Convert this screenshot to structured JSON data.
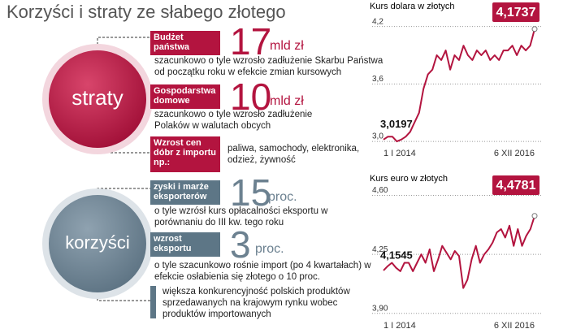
{
  "title": "Korzyści i straty ze słabego złotego",
  "straty": {
    "label": "straty",
    "items": [
      {
        "tag": "Budżet państwa",
        "number": 17,
        "unit": "mld zł",
        "text": "szacunkowo o tyle wzrosło zadłużenie Skarbu Państwa od początku roku w efekcie zmian kursowych"
      },
      {
        "tag": "Gospodarstwa domowe",
        "number": 10,
        "unit": "mld zł",
        "text": "szacunkowo o tyle wzrosło zadłużenie Polaków w walutach obcych"
      },
      {
        "tag": "Wzrost cen dóbr z importu np.:",
        "text": "paliwa, samochody, elektronika, odzież, żywność"
      }
    ]
  },
  "korzysci": {
    "label": "korzyści",
    "items": [
      {
        "tag": "zyski i marże eksporterów",
        "number": 15,
        "unit": "proc.",
        "text": "o tyle wzrósł kurs opłacalności eksportu w porównaniu do III kw. tego roku"
      },
      {
        "tag": "wzrost eksportu",
        "number": 3,
        "unit": "proc.",
        "text": "o tyle szacunkowo rośnie import (po 4 kwartałach) w efekcie osłabienia się złotego o 10 proc."
      },
      {
        "text": "większa konkurencyjność polskich produktów sprzedawanych na krajowym rynku wobec produktów importowanych"
      }
    ]
  },
  "chart_data": [
    {
      "type": "line",
      "title": "Kurs dolara w złotych",
      "color": "#b3143f",
      "grid": true,
      "ylim": [
        2.95,
        4.35
      ],
      "yticks": [
        {
          "value": 3.0,
          "label": "3,0"
        },
        {
          "value": 3.6,
          "label": "3,6"
        },
        {
          "value": 4.2,
          "label": "4,2"
        }
      ],
      "categories": [
        "1 I 2014",
        null,
        null,
        null,
        null,
        null,
        null,
        null,
        null,
        null,
        null,
        null,
        null,
        null,
        null,
        null,
        null,
        null,
        null,
        null,
        null,
        null,
        null,
        null,
        null,
        null,
        null,
        null,
        null,
        null,
        null,
        null,
        null,
        null,
        "6 XII 2016"
      ],
      "values": [
        3.0197,
        3.05,
        3.05,
        3.0,
        3.02,
        3.05,
        3.1,
        3.2,
        3.3,
        3.55,
        3.7,
        3.75,
        3.9,
        3.85,
        3.95,
        3.75,
        3.9,
        3.85,
        4.0,
        3.9,
        3.85,
        3.95,
        3.9,
        3.95,
        3.85,
        3.9,
        3.85,
        3.95,
        3.95,
        4.0,
        3.9,
        4.0,
        3.95,
        4.0,
        4.1737
      ],
      "value_labels": [
        "3,0197",
        null,
        null,
        null,
        null,
        null,
        null,
        null,
        null,
        null,
        null,
        null,
        null,
        null,
        null,
        null,
        null,
        null,
        null,
        null,
        null,
        null,
        null,
        null,
        null,
        null,
        null,
        null,
        null,
        null,
        null,
        null,
        null,
        null,
        "4,1737"
      ]
    },
    {
      "type": "line",
      "title": "Kurs euro w złotych",
      "color": "#b3143f",
      "grid": true,
      "ylim": [
        3.87,
        4.66
      ],
      "yticks": [
        {
          "value": 3.9,
          "label": "3,90"
        },
        {
          "value": 4.25,
          "label": "4,25"
        },
        {
          "value": 4.6,
          "label": "4,60"
        }
      ],
      "categories": [
        "1 I 2014",
        null,
        null,
        null,
        null,
        null,
        null,
        null,
        null,
        null,
        null,
        null,
        null,
        null,
        null,
        null,
        null,
        null,
        null,
        null,
        null,
        null,
        null,
        null,
        null,
        null,
        null,
        null,
        null,
        null,
        null,
        null,
        null,
        null,
        null,
        null,
        "6 XII 2016"
      ],
      "values": [
        4.1545,
        4.18,
        4.2,
        4.17,
        4.15,
        4.2,
        4.2,
        4.15,
        4.2,
        4.25,
        4.2,
        4.28,
        4.15,
        4.22,
        4.3,
        4.26,
        4.22,
        4.27,
        4.24,
        4.05,
        4.1,
        4.22,
        4.3,
        4.2,
        4.25,
        4.28,
        4.32,
        4.38,
        4.4,
        4.35,
        4.42,
        4.3,
        4.4,
        4.3,
        4.36,
        4.4,
        4.4781
      ],
      "value_labels": [
        "4,1545",
        null,
        null,
        null,
        null,
        null,
        null,
        null,
        null,
        null,
        null,
        null,
        null,
        null,
        null,
        null,
        null,
        null,
        null,
        null,
        null,
        null,
        null,
        null,
        null,
        null,
        null,
        null,
        null,
        null,
        null,
        null,
        null,
        null,
        null,
        null,
        "4,4781"
      ]
    }
  ]
}
